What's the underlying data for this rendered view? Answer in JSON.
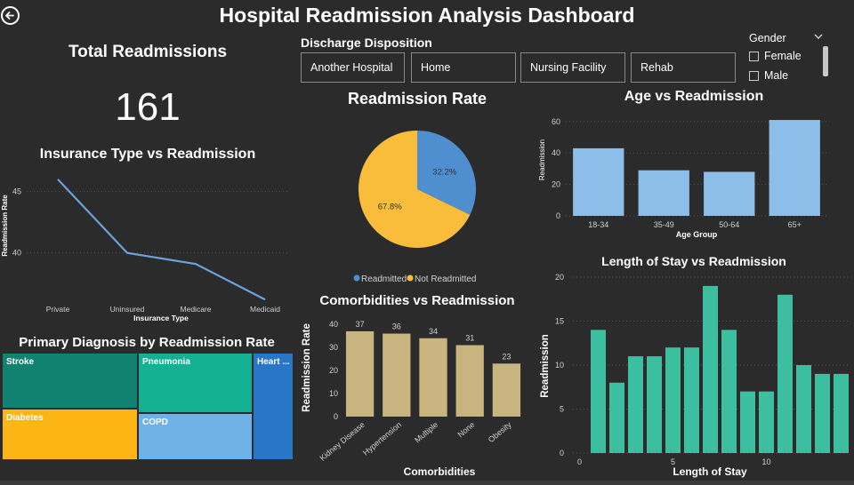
{
  "header": {
    "title": "Hospital Readmission Analysis Dashboard"
  },
  "kpi": {
    "title": "Total Readmissions",
    "value": "161"
  },
  "discharge": {
    "title": "Discharge Disposition",
    "options": [
      "Another Hospital",
      "Home",
      "Nursing Facility",
      "Rehab"
    ]
  },
  "gender": {
    "title": "Gender",
    "options": [
      "Female",
      "Male"
    ]
  },
  "colors": {
    "line": "#6aa3d9",
    "pie_readmitted": "#4f8fcf",
    "pie_not": "#f9bd3b",
    "age_bar": "#8dbde9",
    "comorb_bar": "#c8b47e",
    "los_bar": "#3cbfa1",
    "grid": "#555555",
    "axis_text": "#d0d0d0"
  },
  "chart_data": [
    {
      "id": "insurance",
      "type": "line",
      "title": "Insurance Type vs Readmission",
      "xlabel": "Insurance Type",
      "ylabel": "Readmission Rate",
      "categories": [
        "Private",
        "Uninsured",
        "Medicare",
        "Medicaid"
      ],
      "values": [
        46,
        40,
        39.1,
        36.2
      ],
      "ylim": [
        36,
        47
      ],
      "yticks": [
        40,
        45
      ]
    },
    {
      "id": "readmission_rate",
      "type": "pie",
      "title": "Readmission Rate",
      "labels": [
        "Readmitted",
        "Not Readmitted"
      ],
      "values": [
        32.2,
        67.8
      ],
      "value_labels": [
        "32.2%",
        "67.8%"
      ],
      "legend": "bottom"
    },
    {
      "id": "age",
      "type": "bar",
      "title": "Age vs Readmission",
      "xlabel": "Age Group",
      "ylabel": "Readmission",
      "categories": [
        "18-34",
        "35-49",
        "50-64",
        "65+"
      ],
      "values": [
        43,
        29,
        28,
        61
      ],
      "ylim": [
        0,
        65
      ],
      "yticks": [
        0,
        20,
        40,
        60
      ]
    },
    {
      "id": "comorbidities",
      "type": "bar",
      "title": "Comorbidities vs Readmission",
      "xlabel": "Comorbidities",
      "ylabel": "Readmission Rate",
      "categories": [
        "Kidney Disease",
        "Hypertension",
        "Multiple",
        "None",
        "Obesity"
      ],
      "values": [
        37,
        36,
        34,
        31,
        23
      ],
      "data_labels": [
        "37",
        "36",
        "34",
        "31",
        "23"
      ],
      "ylim": [
        0,
        42
      ],
      "yticks": [
        0,
        10,
        20,
        30,
        40
      ]
    },
    {
      "id": "length_of_stay",
      "type": "bar",
      "title": "Length of Stay vs Readmission",
      "xlabel": "Length of Stay",
      "ylabel": "Readmission",
      "x": [
        1,
        2,
        3,
        4,
        5,
        6,
        7,
        8,
        9,
        10,
        11,
        12,
        13,
        14
      ],
      "values": [
        14,
        8,
        11,
        11,
        12,
        12,
        19,
        14,
        7,
        7,
        18,
        10,
        9,
        9
      ],
      "ylim": [
        0,
        20
      ],
      "yticks": [
        0,
        5,
        10,
        15,
        20
      ],
      "xticks": [
        0,
        5,
        10
      ]
    },
    {
      "id": "diagnosis",
      "type": "treemap",
      "title": "Primary Diagnosis by Readmission Rate",
      "labels": [
        "Stroke",
        "Diabetes",
        "Pneumonia",
        "COPD",
        "Heart ..."
      ],
      "colors": [
        "#118270",
        "#fbb515",
        "#12b193",
        "#70b2e5",
        "#2877c6"
      ]
    }
  ]
}
